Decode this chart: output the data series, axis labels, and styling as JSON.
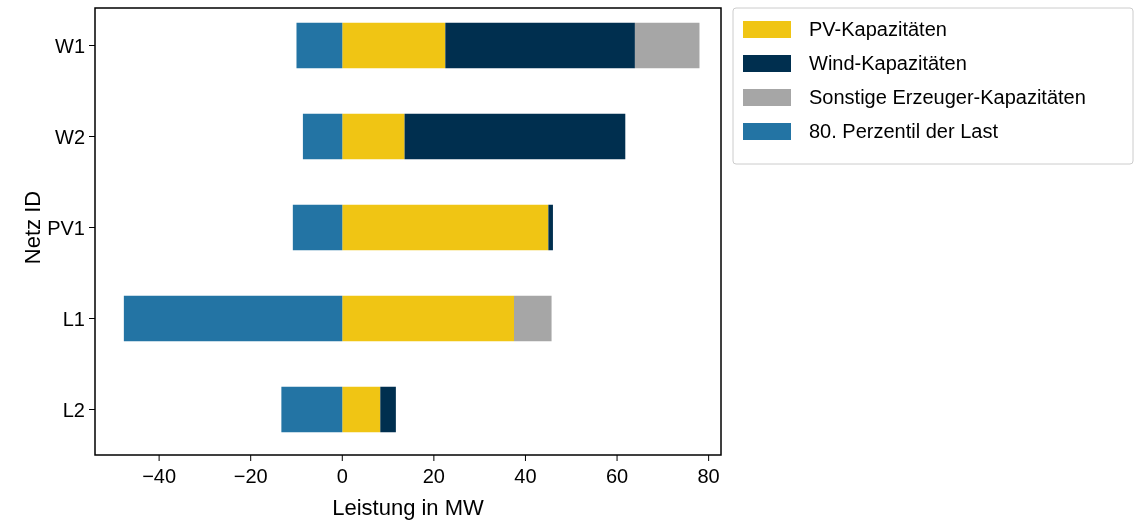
{
  "chart_data": {
    "type": "bar",
    "orientation": "horizontal",
    "stacked": true,
    "xlabel": "Leistung in MW",
    "ylabel": "Netz ID",
    "categories": [
      "W1",
      "W2",
      "PV1",
      "L1",
      "L2"
    ],
    "series": [
      {
        "name": "PV-Kapazitäten",
        "color": "#f0c514",
        "values": [
          22.5,
          13.6,
          45.0,
          37.5,
          8.3
        ]
      },
      {
        "name": "Wind-Kapazitäten",
        "color": "#002f4f",
        "values": [
          41.4,
          48.2,
          1.0,
          0,
          3.4
        ]
      },
      {
        "name": "Sonstige Erzeuger-Kapazitäten",
        "color": "#a6a6a6",
        "values": [
          14.1,
          0,
          0,
          8.2,
          0
        ]
      },
      {
        "name": "80. Perzentil der Last",
        "color": "#2374a4",
        "values": [
          -10.0,
          -8.6,
          -10.8,
          -47.7,
          -13.3
        ]
      }
    ],
    "xlim": [
      -54,
      82.7
    ],
    "xticks": [
      {
        "value": -40,
        "label": "−40"
      },
      {
        "value": -20,
        "label": "−20"
      },
      0,
      20,
      40,
      60,
      80
    ],
    "grid": false,
    "legend": "top right"
  }
}
